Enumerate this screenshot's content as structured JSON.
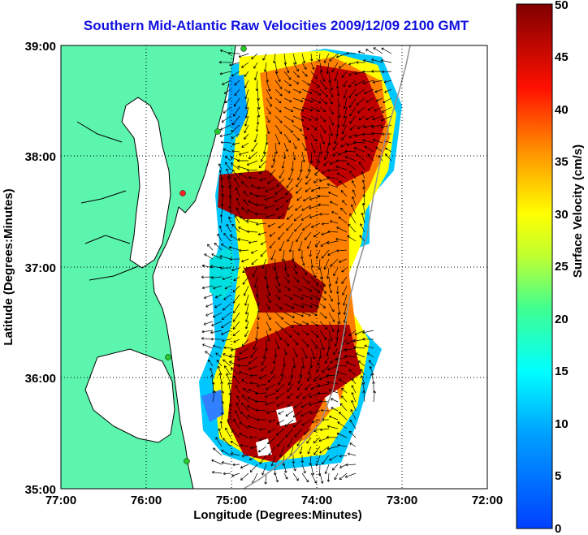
{
  "title": "Southern Mid-Atlantic Raw Velocities 2009/12/09 2100 GMT",
  "map": {
    "xlabel": "Longitude (Degrees:Minutes)",
    "ylabel": "Latitude (Degrees:Minutes)",
    "lon_ticks": [
      "77:00",
      "76:00",
      "75:00",
      "74:00",
      "73:00",
      "72:00"
    ],
    "lat_ticks": [
      "39:00",
      "38:00",
      "37:00",
      "36:00",
      "35:00"
    ],
    "lon_range": [
      -77,
      -72
    ],
    "lat_range": [
      35,
      39
    ],
    "grid": "dotted",
    "land_color": "#5cf5ae",
    "coast_color": "#000000",
    "station_color": "#28c828"
  },
  "colorbar": {
    "label": "Surface Velocity (cm/s)",
    "ticks": [
      "50",
      "45",
      "40",
      "35",
      "30",
      "25",
      "20",
      "15",
      "10",
      "5",
      "0"
    ],
    "range": [
      0,
      50
    ],
    "colormap": "jet"
  }
}
